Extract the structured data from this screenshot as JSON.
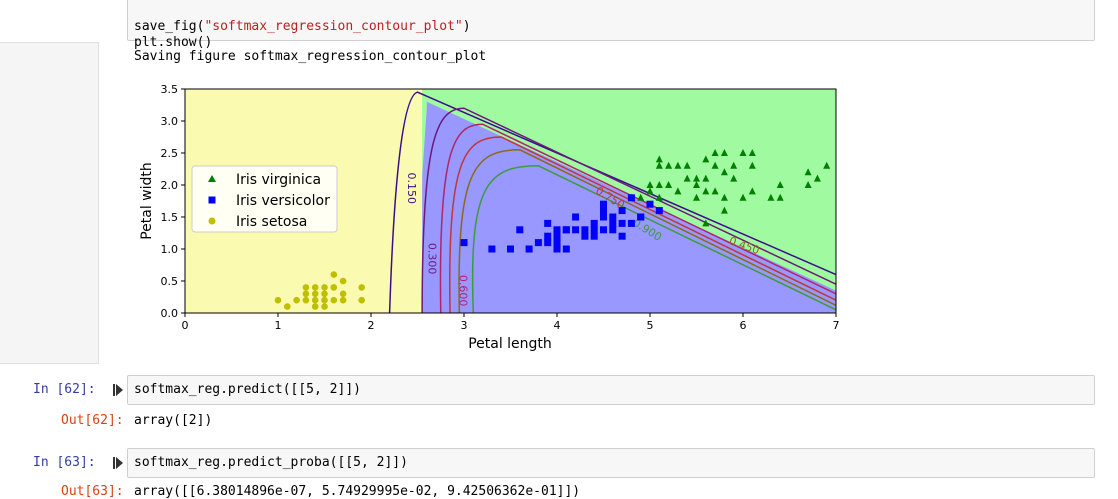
{
  "cells": {
    "top_code": {
      "line1_prefix": "save_fig(",
      "line1_string": "\"softmax_regression_contour_plot\"",
      "line1_suffix": ")",
      "line2": "plt.show()"
    },
    "top_output": "Saving figure softmax_regression_contour_plot",
    "cell62": {
      "in_prompt": "In [62]:",
      "code": "softmax_reg.predict([[5, 2]])",
      "out_prompt": "Out[62]:",
      "output": "array([2])"
    },
    "cell63": {
      "in_prompt": "In [63]:",
      "code": "softmax_reg.predict_proba([[5, 2]])",
      "out_prompt": "Out[63]:",
      "output": "array([[6.38014896e-07, 5.74929995e-02, 9.42506362e-01]])"
    }
  },
  "chart_data": {
    "type": "scatter",
    "xlabel": "Petal length",
    "ylabel": "Petal width",
    "xlim": [
      0,
      7
    ],
    "ylim": [
      0,
      3.5
    ],
    "xticks": [
      0,
      1,
      2,
      3,
      4,
      5,
      6,
      7
    ],
    "yticks": [
      0.0,
      0.5,
      1.0,
      1.5,
      2.0,
      2.5,
      3.0,
      3.5
    ],
    "ytick_labels": [
      "0.0",
      "0.5",
      "1.0",
      "1.5",
      "2.0",
      "2.5",
      "3.0",
      "3.5"
    ],
    "legend_position": "upper-left",
    "regions": {
      "setosa_color": "#fafab0",
      "versicolor_color": "#9898ff",
      "virginica_color": "#a0faa0"
    },
    "contour_labels": [
      "0.150",
      "0.300",
      "0.450",
      "0.600",
      "0.750",
      "0.900"
    ],
    "series": [
      {
        "name": "Iris virginica",
        "marker": "triangle",
        "color": "#008000",
        "points": [
          [
            5.1,
            2.4
          ],
          [
            5.1,
            2.3
          ],
          [
            5.2,
            2.3
          ],
          [
            5.3,
            2.3
          ],
          [
            5.4,
            2.3
          ],
          [
            5.6,
            2.4
          ],
          [
            5.7,
            2.5
          ],
          [
            5.8,
            2.5
          ],
          [
            5.9,
            2.3
          ],
          [
            6.0,
            2.5
          ],
          [
            6.1,
            2.5
          ],
          [
            6.1,
            2.3
          ],
          [
            5.5,
            2.1
          ],
          [
            5.6,
            2.1
          ],
          [
            5.7,
            2.3
          ],
          [
            5.8,
            2.2
          ],
          [
            6.7,
            2.2
          ],
          [
            6.9,
            2.3
          ],
          [
            6.8,
            2.1
          ],
          [
            6.7,
            2.0
          ],
          [
            5.0,
            2.0
          ],
          [
            5.1,
            2.0
          ],
          [
            5.2,
            2.0
          ],
          [
            5.3,
            1.9
          ],
          [
            5.4,
            2.1
          ],
          [
            5.5,
            2.0
          ],
          [
            5.6,
            1.9
          ],
          [
            5.8,
            1.8
          ],
          [
            5.9,
            2.1
          ],
          [
            6.0,
            1.8
          ],
          [
            6.3,
            1.8
          ],
          [
            6.1,
            1.9
          ],
          [
            6.4,
            2.0
          ],
          [
            5.0,
            1.9
          ],
          [
            4.9,
            1.8
          ],
          [
            5.1,
            1.8
          ],
          [
            5.6,
            1.4
          ],
          [
            5.8,
            1.6
          ],
          [
            4.8,
            1.8
          ],
          [
            5.5,
            1.8
          ],
          [
            5.7,
            1.9
          ],
          [
            6.4,
            1.8
          ]
        ]
      },
      {
        "name": "Iris versicolor",
        "marker": "square",
        "color": "#0000ff",
        "points": [
          [
            3.0,
            1.1
          ],
          [
            3.3,
            1.0
          ],
          [
            3.5,
            1.0
          ],
          [
            3.7,
            1.0
          ],
          [
            3.9,
            1.1
          ],
          [
            4.0,
            1.0
          ],
          [
            4.1,
            1.0
          ],
          [
            3.6,
            1.3
          ],
          [
            3.8,
            1.1
          ],
          [
            3.9,
            1.2
          ],
          [
            3.9,
            1.4
          ],
          [
            4.0,
            1.3
          ],
          [
            4.1,
            1.3
          ],
          [
            4.2,
            1.3
          ],
          [
            4.3,
            1.3
          ],
          [
            4.4,
            1.4
          ],
          [
            4.5,
            1.5
          ],
          [
            4.6,
            1.4
          ],
          [
            4.7,
            1.4
          ],
          [
            4.5,
            1.6
          ],
          [
            4.7,
            1.6
          ],
          [
            4.8,
            1.8
          ],
          [
            4.9,
            1.5
          ],
          [
            5.0,
            1.7
          ],
          [
            5.1,
            1.6
          ],
          [
            4.4,
            1.2
          ],
          [
            4.5,
            1.3
          ],
          [
            4.6,
            1.5
          ],
          [
            4.4,
            1.3
          ],
          [
            4.2,
            1.5
          ],
          [
            4.0,
            1.2
          ],
          [
            4.3,
            1.2
          ],
          [
            4.7,
            1.2
          ],
          [
            4.8,
            1.4
          ],
          [
            4.9,
            1.5
          ],
          [
            4.6,
            1.3
          ],
          [
            4.5,
            1.5
          ],
          [
            4.1,
            1.3
          ],
          [
            4.0,
            1.1
          ],
          [
            4.5,
            1.7
          ]
        ]
      },
      {
        "name": "Iris setosa",
        "marker": "circle",
        "color": "#bfbf00",
        "points": [
          [
            1.0,
            0.2
          ],
          [
            1.1,
            0.1
          ],
          [
            1.2,
            0.2
          ],
          [
            1.3,
            0.2
          ],
          [
            1.3,
            0.3
          ],
          [
            1.3,
            0.4
          ],
          [
            1.4,
            0.1
          ],
          [
            1.4,
            0.2
          ],
          [
            1.4,
            0.3
          ],
          [
            1.4,
            0.4
          ],
          [
            1.5,
            0.1
          ],
          [
            1.5,
            0.2
          ],
          [
            1.5,
            0.3
          ],
          [
            1.5,
            0.4
          ],
          [
            1.6,
            0.2
          ],
          [
            1.6,
            0.4
          ],
          [
            1.6,
            0.6
          ],
          [
            1.7,
            0.2
          ],
          [
            1.7,
            0.3
          ],
          [
            1.7,
            0.5
          ],
          [
            1.9,
            0.2
          ],
          [
            1.9,
            0.4
          ]
        ]
      }
    ]
  }
}
